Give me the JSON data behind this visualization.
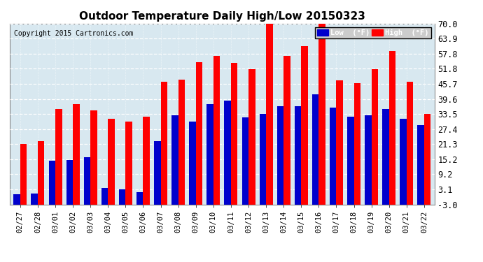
{
  "title": "Outdoor Temperature Daily High/Low 20150323",
  "copyright": "Copyright 2015 Cartronics.com",
  "dates": [
    "02/27",
    "02/28",
    "03/01",
    "03/02",
    "03/03",
    "03/04",
    "03/05",
    "03/06",
    "03/07",
    "03/08",
    "03/09",
    "03/10",
    "03/11",
    "03/12",
    "03/13",
    "03/14",
    "03/15",
    "03/16",
    "03/17",
    "03/18",
    "03/19",
    "03/20",
    "03/21",
    "03/22"
  ],
  "highs": [
    21.3,
    22.5,
    35.5,
    37.5,
    35.0,
    31.5,
    30.5,
    32.5,
    46.5,
    47.5,
    54.5,
    57.0,
    54.0,
    51.5,
    70.0,
    57.0,
    61.0,
    72.5,
    47.0,
    46.0,
    51.5,
    59.0,
    46.5,
    33.5
  ],
  "lows": [
    1.0,
    1.5,
    14.5,
    15.0,
    16.0,
    3.5,
    3.0,
    2.0,
    22.5,
    33.0,
    30.5,
    37.5,
    39.0,
    32.0,
    33.5,
    36.5,
    36.5,
    41.5,
    36.0,
    32.5,
    33.0,
    35.5,
    31.5,
    29.0
  ],
  "high_color": "#ff0000",
  "low_color": "#0000cc",
  "plot_bg_color": "#d8e8f0",
  "fig_bg_color": "#ffffff",
  "grid_color": "#ffffff",
  "yticks": [
    -3.0,
    3.1,
    9.2,
    15.2,
    21.3,
    27.4,
    33.5,
    39.6,
    45.7,
    51.8,
    57.8,
    63.9,
    70.0
  ],
  "ylim": [
    -3.0,
    70.0
  ],
  "bar_width": 0.38,
  "bar_bottom": -3.0
}
